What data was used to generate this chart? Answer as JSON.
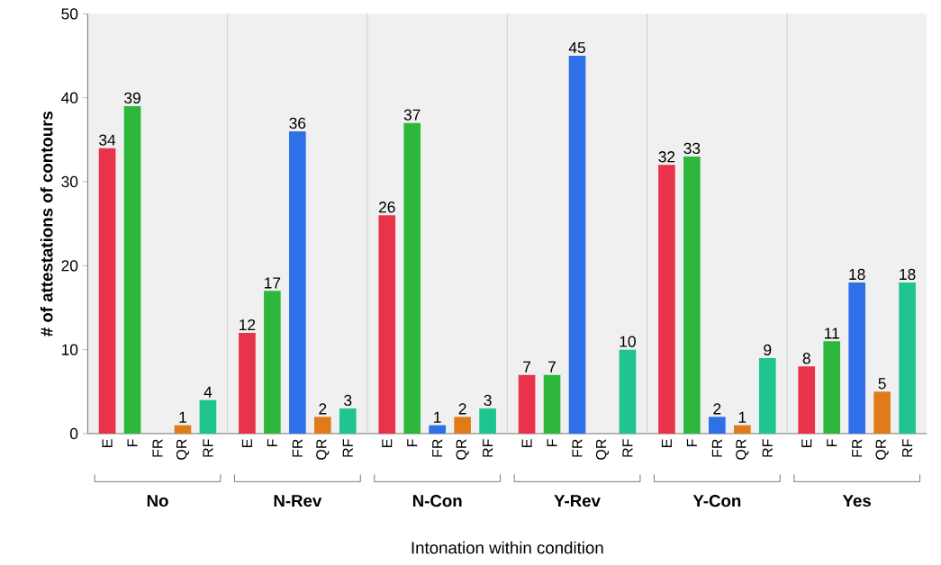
{
  "chart_data": {
    "type": "bar",
    "xlabel": "Intonation within condition",
    "ylabel": "# of attestations of contours",
    "categories": [
      "No",
      "N-Rev",
      "N-Con",
      "Y-Rev",
      "Y-Con",
      "Yes"
    ],
    "ylim": [
      0,
      50
    ],
    "yticks": [
      0,
      10,
      20,
      30,
      40,
      50
    ],
    "series": [
      {
        "name": "E",
        "color": "#e8334a",
        "values": [
          34,
          12,
          26,
          7,
          32,
          8
        ],
        "value_labels": [
          "34",
          "12",
          "26",
          "7",
          "32",
          "8"
        ]
      },
      {
        "name": "F",
        "color": "#2db83d",
        "values": [
          39,
          17,
          37,
          7,
          33,
          11
        ],
        "value_labels": [
          "39",
          "17",
          "37",
          "7",
          "33",
          "11"
        ]
      },
      {
        "name": "FR",
        "color": "#2f6fe8",
        "values": [
          0,
          36,
          1,
          45,
          2,
          18
        ],
        "value_labels": [
          null,
          "36",
          "1",
          "45",
          "2",
          "18"
        ]
      },
      {
        "name": "QR",
        "color": "#e07b1a",
        "values": [
          1,
          2,
          2,
          0,
          1,
          5
        ],
        "value_labels": [
          "1",
          "2",
          "2",
          null,
          "1",
          "5"
        ]
      },
      {
        "name": "RF",
        "color": "#1fc490",
        "values": [
          4,
          3,
          3,
          10,
          9,
          18
        ],
        "value_labels": [
          "4",
          "3",
          "3",
          "10",
          "9",
          "18"
        ]
      }
    ]
  }
}
